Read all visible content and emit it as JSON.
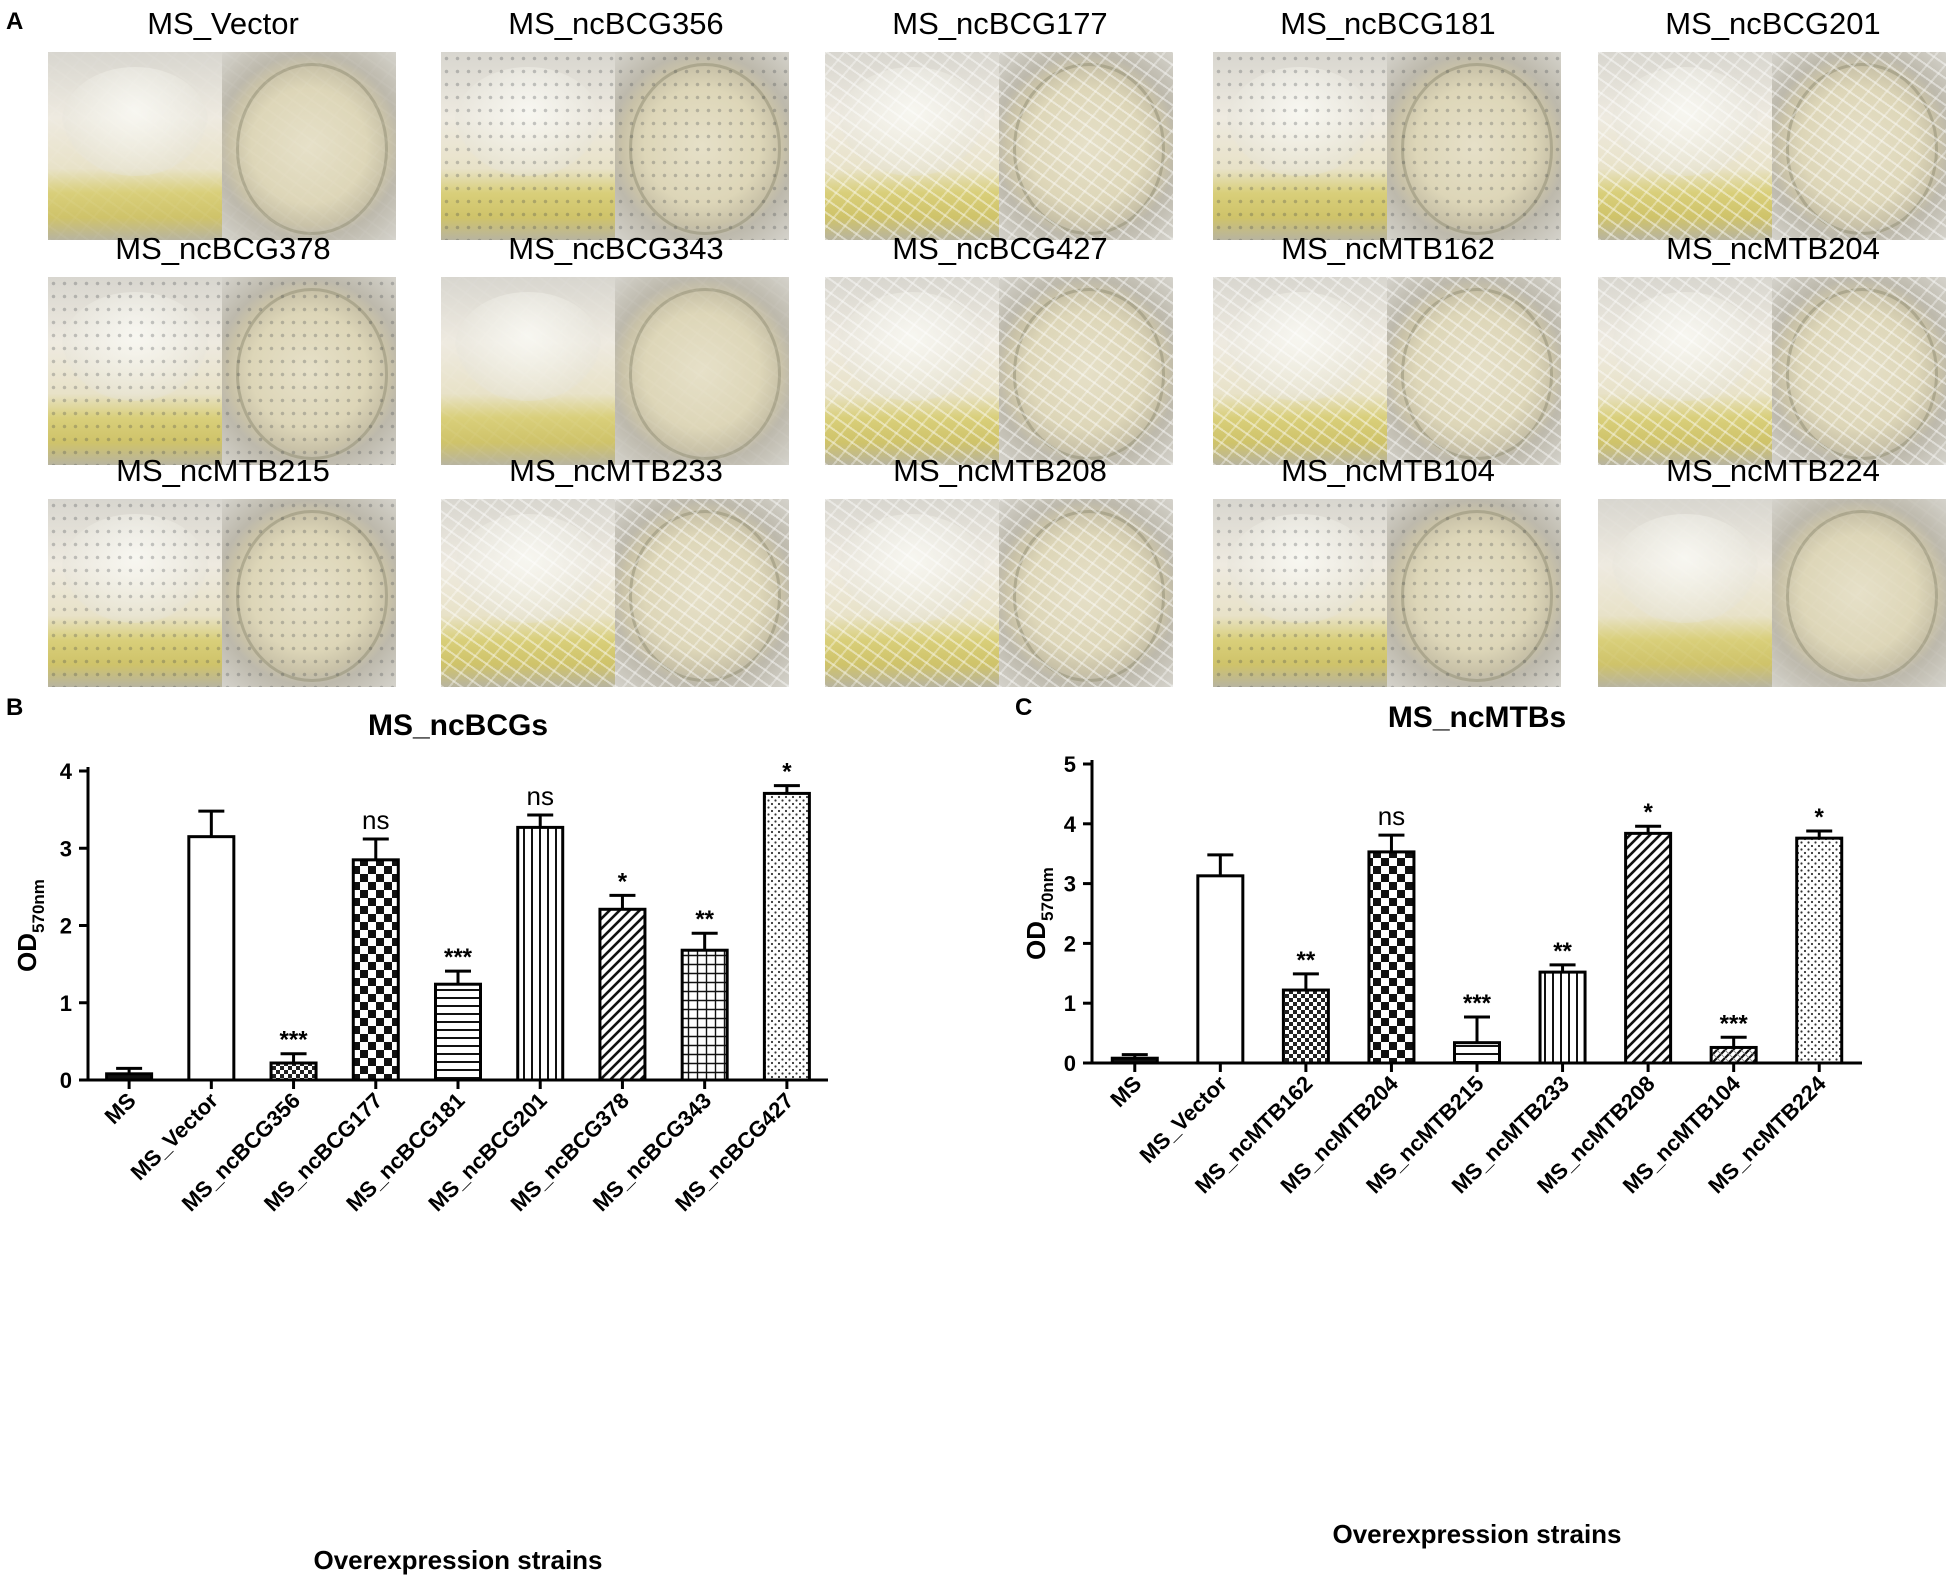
{
  "panels": {
    "a": "A",
    "b": "B",
    "c": "C"
  },
  "photos": [
    {
      "label": "MS_Vector",
      "texture": "smooth"
    },
    {
      "label": "MS_ncBCG356",
      "texture": "speckle"
    },
    {
      "label": "MS_ncBCG177",
      "texture": "wrinkle"
    },
    {
      "label": "MS_ncBCG181",
      "texture": "speckle"
    },
    {
      "label": "MS_ncBCG201",
      "texture": "wrinkle"
    },
    {
      "label": "MS_ncBCG378",
      "texture": "speckle"
    },
    {
      "label": "MS_ncBCG343",
      "texture": "smooth"
    },
    {
      "label": "MS_ncBCG427",
      "texture": "wrinkle"
    },
    {
      "label": "MS_ncMTB162",
      "texture": "wrinkle"
    },
    {
      "label": "MS_ncMTB204",
      "texture": "wrinkle"
    },
    {
      "label": "MS_ncMTB215",
      "texture": "speckle"
    },
    {
      "label": "MS_ncMTB233",
      "texture": "wrinkle"
    },
    {
      "label": "MS_ncMTB208",
      "texture": "wrinkle"
    },
    {
      "label": "MS_ncMTB104",
      "texture": "speckle"
    },
    {
      "label": "MS_ncMTB224",
      "texture": "smooth"
    }
  ],
  "chart_data": [
    {
      "type": "bar",
      "title": "MS_ncBCGs",
      "xlabel": "Overexpression strains",
      "ylabel": "OD",
      "ylabel_sub": "570nm",
      "ylim": [
        0,
        4
      ],
      "yticks": [
        "0",
        "1",
        "2",
        "3",
        "4"
      ],
      "categories": [
        "MS",
        "MS_Vector",
        "MS_ncBCG356",
        "MS_ncBCG177",
        "MS_ncBCG181",
        "MS_ncBCG201",
        "MS_ncBCG378",
        "MS_ncBCG343",
        "MS_ncBCG427"
      ],
      "values": [
        0.08,
        3.15,
        0.22,
        2.85,
        1.24,
        3.27,
        2.21,
        1.68,
        3.71
      ],
      "errors": [
        0.07,
        0.33,
        0.12,
        0.27,
        0.17,
        0.16,
        0.18,
        0.22,
        0.1
      ],
      "significance": [
        "",
        "",
        "***",
        "ns",
        "***",
        "ns",
        "*",
        "**",
        "*"
      ],
      "fills": [
        "solid",
        "white",
        "smallcheck",
        "bigcheck",
        "hlines",
        "vlines",
        "diag",
        "grid",
        "dots"
      ]
    },
    {
      "type": "bar",
      "title": "MS_ncMTBs",
      "xlabel": "Overexpression strains",
      "ylabel": "OD",
      "ylabel_sub": "570nm",
      "ylim": [
        0,
        5
      ],
      "yticks": [
        "0",
        "1",
        "2",
        "3",
        "4",
        "5"
      ],
      "categories": [
        "MS",
        "MS_Vector",
        "MS_ncMTB162",
        "MS_ncMTB204",
        "MS_ncMTB215",
        "MS_ncMTB233",
        "MS_ncMTB208",
        "MS_ncMTB104",
        "MS_ncMTB224"
      ],
      "values": [
        0.08,
        3.13,
        1.22,
        3.53,
        0.34,
        1.52,
        3.84,
        0.26,
        3.76
      ],
      "errors": [
        0.06,
        0.35,
        0.27,
        0.28,
        0.43,
        0.12,
        0.12,
        0.17,
        0.12
      ],
      "significance": [
        "",
        "",
        "**",
        "ns",
        "***",
        "**",
        "*",
        "***",
        "*"
      ],
      "fills": [
        "solid",
        "white",
        "smallcheck",
        "bigcheck",
        "hlines",
        "vlines",
        "diag",
        "hatchdiag",
        "dots"
      ]
    }
  ]
}
